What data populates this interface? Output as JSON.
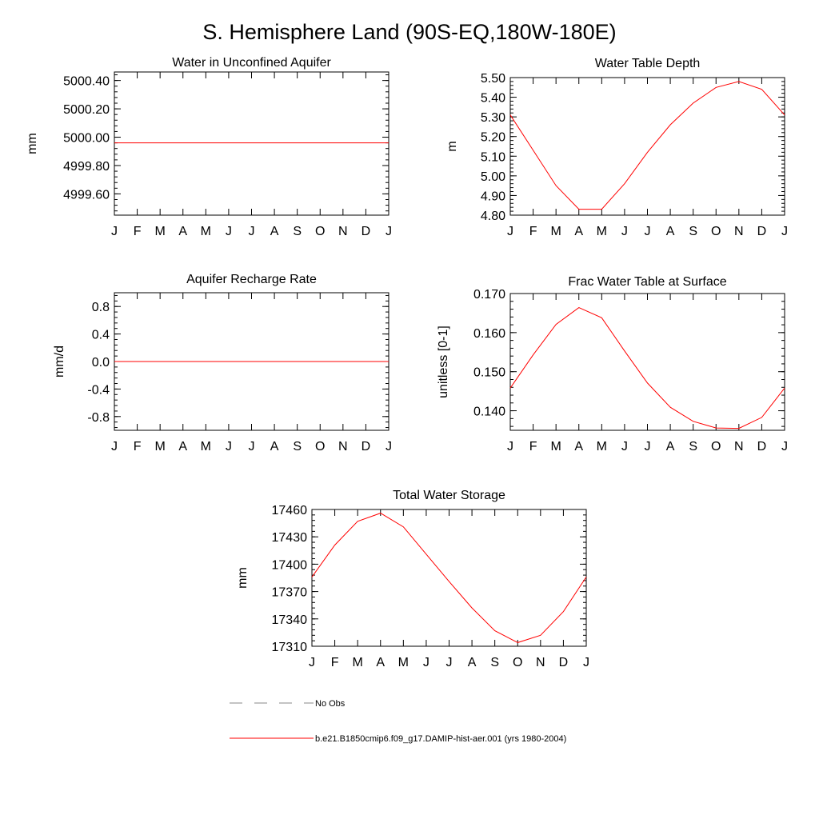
{
  "figure": {
    "title": "S. Hemisphere Land (90S-EQ,180W-180E)"
  },
  "months": [
    "J",
    "F",
    "M",
    "A",
    "M",
    "J",
    "J",
    "A",
    "S",
    "O",
    "N",
    "D",
    "J"
  ],
  "chart_data": [
    {
      "type": "line",
      "title": "Water in Unconfined Aquifer",
      "ylabel": "mm",
      "xlabel": "",
      "categories": [
        "J",
        "F",
        "M",
        "A",
        "M",
        "J",
        "J",
        "A",
        "S",
        "O",
        "N",
        "D",
        "J"
      ],
      "ylim": [
        4999.45,
        5000.46
      ],
      "yticks": [
        4999.6,
        4999.8,
        5000.0,
        5000.2,
        5000.4
      ],
      "ytick_labels": [
        "4999.60",
        "4999.80",
        "5000.00",
        "5000.20",
        "5000.40"
      ],
      "series": [
        {
          "values": [
            4999.96,
            4999.96,
            4999.96,
            4999.96,
            4999.96,
            4999.96,
            4999.96,
            4999.96,
            4999.96,
            4999.96,
            4999.96,
            4999.96,
            4999.96
          ],
          "color": "#ff0000"
        }
      ]
    },
    {
      "type": "line",
      "title": "Water Table Depth",
      "ylabel": "m",
      "xlabel": "",
      "categories": [
        "J",
        "F",
        "M",
        "A",
        "M",
        "J",
        "J",
        "A",
        "S",
        "O",
        "N",
        "D",
        "J"
      ],
      "ylim": [
        4.8,
        5.5
      ],
      "yticks": [
        4.8,
        4.9,
        5.0,
        5.1,
        5.2,
        5.3,
        5.4,
        5.5
      ],
      "ytick_labels": [
        "4.80",
        "4.90",
        "5.00",
        "5.10",
        "5.20",
        "5.30",
        "5.40",
        "5.50"
      ],
      "series": [
        {
          "values": [
            5.31,
            5.13,
            4.95,
            4.83,
            4.83,
            4.96,
            5.12,
            5.26,
            5.37,
            5.45,
            5.48,
            5.44,
            5.31
          ],
          "color": "#ff0000"
        }
      ]
    },
    {
      "type": "line",
      "title": "Aquifer Recharge Rate",
      "ylabel": "mm/d",
      "xlabel": "",
      "categories": [
        "J",
        "F",
        "M",
        "A",
        "M",
        "J",
        "J",
        "A",
        "S",
        "O",
        "N",
        "D",
        "J"
      ],
      "ylim": [
        -1.0,
        1.0
      ],
      "yticks": [
        -0.8,
        -0.4,
        0.0,
        0.4,
        0.8
      ],
      "ytick_labels": [
        "-0.8",
        "-0.4",
        "0.0",
        "0.4",
        "0.8"
      ],
      "series": [
        {
          "values": [
            0,
            0,
            0,
            0,
            0,
            0,
            0,
            0,
            0,
            0,
            0,
            0,
            0
          ],
          "color": "#ff0000"
        }
      ]
    },
    {
      "type": "line",
      "title": "Frac Water Table at Surface",
      "ylabel": "unitless [0-1]",
      "xlabel": "",
      "categories": [
        "J",
        "F",
        "M",
        "A",
        "M",
        "J",
        "J",
        "A",
        "S",
        "O",
        "N",
        "D",
        "J"
      ],
      "ylim": [
        0.135,
        0.17
      ],
      "yticks": [
        0.14,
        0.15,
        0.16,
        0.17
      ],
      "ytick_labels": [
        "0.140",
        "0.150",
        "0.160",
        "0.170"
      ],
      "series": [
        {
          "values": [
            0.1458,
            0.1543,
            0.1621,
            0.1664,
            0.1638,
            0.1553,
            0.1471,
            0.1409,
            0.1373,
            0.1356,
            0.1355,
            0.1383,
            0.1458
          ],
          "color": "#ff0000"
        }
      ]
    },
    {
      "type": "line",
      "title": "Total Water Storage",
      "ylabel": "mm",
      "xlabel": "",
      "categories": [
        "J",
        "F",
        "M",
        "A",
        "M",
        "J",
        "J",
        "A",
        "S",
        "O",
        "N",
        "D",
        "J"
      ],
      "ylim": [
        17310,
        17460
      ],
      "yticks": [
        17310,
        17340,
        17370,
        17400,
        17430,
        17460
      ],
      "ytick_labels": [
        "17310",
        "17340",
        "17370",
        "17400",
        "17430",
        "17460"
      ],
      "series": [
        {
          "values": [
            17386,
            17421,
            17447,
            17456,
            17441,
            17411,
            17381,
            17352,
            17327,
            17314,
            17322,
            17348,
            17386
          ],
          "color": "#ff0000"
        }
      ]
    }
  ],
  "legend": {
    "items": [
      {
        "label": "No Obs",
        "style": "dashed",
        "color": "#888888"
      },
      {
        "label": "b.e21.B1850cmip6.f09_g17.DAMIP-hist-aer.001 (yrs 1980-2004)",
        "style": "solid",
        "color": "#ff0000"
      }
    ]
  }
}
